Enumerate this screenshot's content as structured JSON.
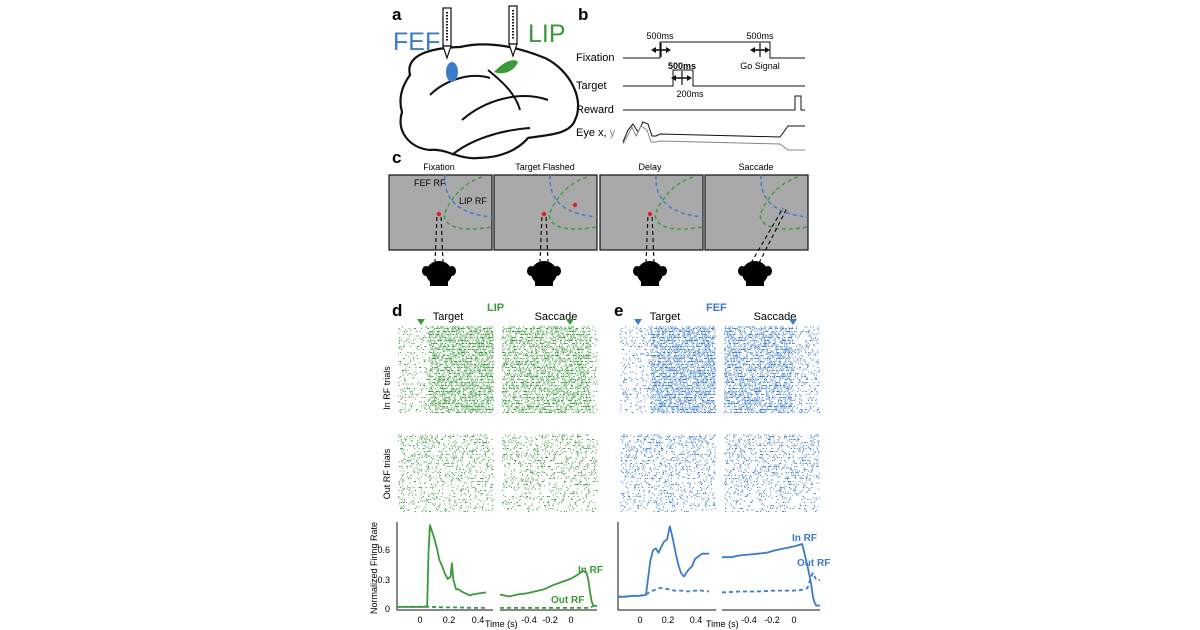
{
  "panels": {
    "a": {
      "letter": "a",
      "area_fef": "FEF",
      "area_lip": "LIP",
      "colors": {
        "fef": "#3b7bc8",
        "lip": "#3a9a3a"
      }
    },
    "b": {
      "letter": "b",
      "rows": [
        "Fixation",
        "Target",
        "Reward",
        "Eye x,",
        "y"
      ],
      "durations": {
        "fix1": "500ms",
        "fix2": "500ms",
        "target": "500ms",
        "gap": "200ms"
      },
      "go_signal": "Go Signal"
    },
    "c": {
      "letter": "c",
      "frames": [
        "Fixation",
        "Target Flashed",
        "Delay",
        "Saccade"
      ],
      "rf_fef": "FEF RF",
      "rf_lip": "LIP RF"
    },
    "d": {
      "letter": "d",
      "area": "LIP",
      "align_left": "Target",
      "align_right": "Saccade",
      "row_in": "In RF trials",
      "row_out": "Out RF trials",
      "ylabel": "Normalized Firing Rate",
      "yticks": [
        "0",
        "0.3",
        "0.6"
      ],
      "xticks_left": [
        "0",
        "0.2",
        "0.4"
      ],
      "xticks_right": [
        "-0.4",
        "-0.2",
        "0"
      ],
      "xlabel": "Time (s)",
      "legend_in": "In RF",
      "legend_out": "Out RF",
      "color": "#3a9a3a"
    },
    "e": {
      "letter": "e",
      "area": "FEF",
      "align_left": "Target",
      "align_right": "Saccade",
      "xticks_left": [
        "0",
        "0.2",
        "0.4"
      ],
      "xticks_right": [
        "-0.4",
        "-0.2",
        "0"
      ],
      "xlabel": "Time (s)",
      "legend_in": "In RF",
      "legend_out": "Out RF",
      "color": "#3b7bc8"
    }
  },
  "chart_data": [
    {
      "type": "line",
      "panel": "d",
      "ylim": [
        0,
        0.85
      ],
      "segments": [
        {
          "xlim": [
            -0.15,
            0.55
          ],
          "series": [
            {
              "name": "In RF",
              "x": [
                -0.15,
                -0.1,
                -0.05,
                0,
                0.05,
                0.07,
                0.08,
                0.09,
                0.1,
                0.12,
                0.14,
                0.16,
                0.18,
                0.2,
                0.22,
                0.24,
                0.25,
                0.26,
                0.28,
                0.3,
                0.32,
                0.35,
                0.38,
                0.4,
                0.45,
                0.5
              ],
              "y": [
                0.03,
                0.03,
                0.03,
                0.03,
                0.03,
                0.04,
                0.55,
                0.82,
                0.78,
                0.7,
                0.6,
                0.48,
                0.42,
                0.35,
                0.3,
                0.32,
                0.45,
                0.3,
                0.2,
                0.2,
                0.18,
                0.16,
                0.14,
                0.15,
                0.16,
                0.17
              ]
            },
            {
              "name": "Out RF",
              "x": [
                -0.15,
                0,
                0.1,
                0.2,
                0.3,
                0.4,
                0.5
              ],
              "y": [
                0.03,
                0.03,
                0.03,
                0.025,
                0.025,
                0.02,
                0.02
              ]
            }
          ]
        },
        {
          "xlim": [
            -0.5,
            0.05
          ],
          "series": [
            {
              "name": "In RF",
              "x": [
                -0.5,
                -0.45,
                -0.4,
                -0.35,
                -0.3,
                -0.25,
                -0.2,
                -0.15,
                -0.1,
                -0.06,
                -0.03,
                -0.01,
                0,
                0.01,
                0.02,
                0.03,
                0.05
              ],
              "y": [
                0.15,
                0.13,
                0.15,
                0.16,
                0.18,
                0.2,
                0.24,
                0.27,
                0.3,
                0.34,
                0.38,
                0.36,
                0.3,
                0.18,
                0.08,
                0.04,
                0.04
              ]
            },
            {
              "name": "Out RF",
              "x": [
                -0.5,
                -0.4,
                -0.3,
                -0.2,
                -0.1,
                0,
                0.02,
                0.03,
                0.05
              ],
              "y": [
                0.02,
                0.02,
                0.02,
                0.02,
                0.02,
                0.02,
                0.03,
                0.04,
                0.04
              ]
            }
          ]
        }
      ]
    },
    {
      "type": "line",
      "panel": "e",
      "ylim": [
        0,
        1.0
      ],
      "segments": [
        {
          "xlim": [
            -0.15,
            0.55
          ],
          "series": [
            {
              "name": "In RF",
              "x": [
                -0.15,
                -0.1,
                -0.05,
                0,
                0.05,
                0.06,
                0.08,
                0.1,
                0.12,
                0.14,
                0.16,
                0.18,
                0.2,
                0.22,
                0.24,
                0.26,
                0.28,
                0.3,
                0.32,
                0.35,
                0.38,
                0.4,
                0.45,
                0.5
              ],
              "y": [
                0.15,
                0.15,
                0.16,
                0.16,
                0.17,
                0.3,
                0.55,
                0.68,
                0.7,
                0.65,
                0.72,
                0.78,
                0.8,
                0.95,
                0.82,
                0.66,
                0.52,
                0.42,
                0.38,
                0.45,
                0.5,
                0.58,
                0.64,
                0.64
              ]
            },
            {
              "name": "Out RF",
              "x": [
                -0.15,
                -0.05,
                0,
                0.05,
                0.1,
                0.15,
                0.2,
                0.25,
                0.3,
                0.35,
                0.4,
                0.45,
                0.5
              ],
              "y": [
                0.15,
                0.16,
                0.16,
                0.18,
                0.22,
                0.25,
                0.24,
                0.22,
                0.22,
                0.21,
                0.22,
                0.22,
                0.21
              ]
            }
          ]
        },
        {
          "xlim": [
            -0.5,
            0.05
          ],
          "series": [
            {
              "name": "In RF",
              "x": [
                -0.5,
                -0.45,
                -0.4,
                -0.35,
                -0.3,
                -0.25,
                -0.2,
                -0.15,
                -0.1,
                -0.05,
                -0.02,
                0,
                0.01,
                0.02,
                0.03,
                0.05
              ],
              "y": [
                0.6,
                0.6,
                0.62,
                0.63,
                0.64,
                0.65,
                0.68,
                0.7,
                0.72,
                0.75,
                0.5,
                0.3,
                0.15,
                0.08,
                0.05,
                0.05
              ]
            },
            {
              "name": "Out RF",
              "x": [
                -0.5,
                -0.4,
                -0.3,
                -0.2,
                -0.1,
                -0.05,
                -0.02,
                0,
                0.01,
                0.02,
                0.03,
                0.05
              ],
              "y": [
                0.2,
                0.21,
                0.21,
                0.22,
                0.22,
                0.23,
                0.25,
                0.38,
                0.42,
                0.38,
                0.34,
                0.34
              ]
            }
          ]
        }
      ]
    }
  ]
}
